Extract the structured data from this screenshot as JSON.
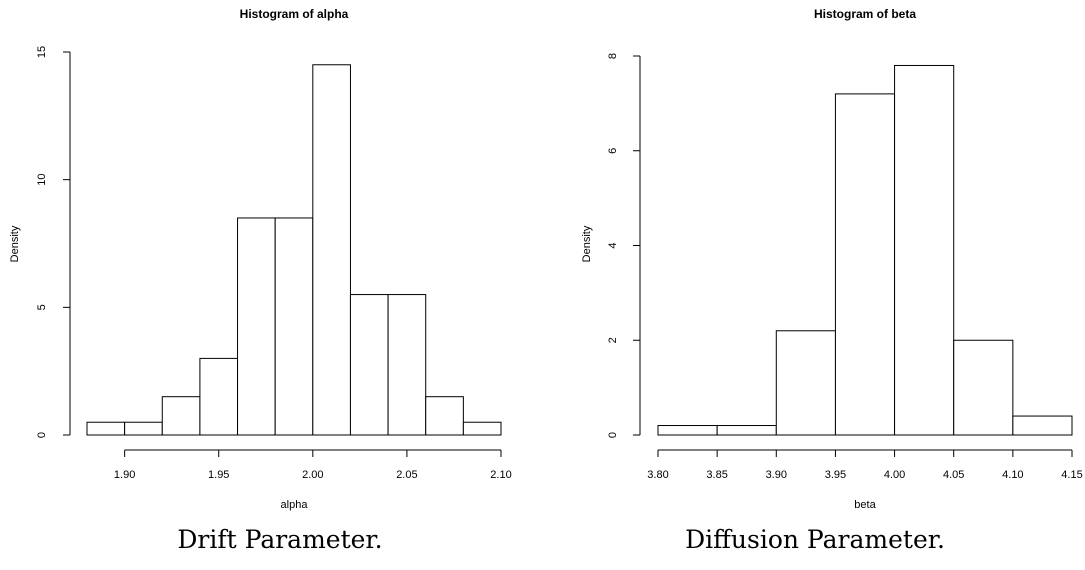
{
  "chart_data": [
    {
      "type": "bar",
      "subtype": "histogram",
      "title": "Histogram of alpha",
      "xlabel": "alpha",
      "ylabel": "Density",
      "bins": [
        {
          "start": 1.88,
          "end": 1.9,
          "density": 0.5
        },
        {
          "start": 1.9,
          "end": 1.92,
          "density": 0.5
        },
        {
          "start": 1.92,
          "end": 1.94,
          "density": 1.5
        },
        {
          "start": 1.94,
          "end": 1.96,
          "density": 3.0
        },
        {
          "start": 1.96,
          "end": 1.98,
          "density": 8.5
        },
        {
          "start": 1.98,
          "end": 2.0,
          "density": 8.5
        },
        {
          "start": 2.0,
          "end": 2.02,
          "density": 14.5
        },
        {
          "start": 2.02,
          "end": 2.04,
          "density": 5.5
        },
        {
          "start": 2.04,
          "end": 2.06,
          "density": 5.5
        },
        {
          "start": 2.06,
          "end": 2.08,
          "density": 1.5
        },
        {
          "start": 2.08,
          "end": 2.1,
          "density": 0.5
        }
      ],
      "xlim": [
        1.88,
        2.1
      ],
      "ylim": [
        0,
        15
      ],
      "xticks": [
        "1.90",
        "1.95",
        "2.00",
        "2.05",
        "2.10"
      ],
      "yticks": [
        "0",
        "5",
        "10",
        "15"
      ],
      "grid": false,
      "legend": "none",
      "caption": "Drift Parameter."
    },
    {
      "type": "bar",
      "subtype": "histogram",
      "title": "Histogram of beta",
      "xlabel": "beta",
      "ylabel": "Density",
      "bins": [
        {
          "start": 3.8,
          "end": 3.85,
          "density": 0.2
        },
        {
          "start": 3.85,
          "end": 3.9,
          "density": 0.2
        },
        {
          "start": 3.9,
          "end": 3.95,
          "density": 2.2
        },
        {
          "start": 3.95,
          "end": 4.0,
          "density": 7.2
        },
        {
          "start": 4.0,
          "end": 4.05,
          "density": 7.8
        },
        {
          "start": 4.05,
          "end": 4.1,
          "density": 2.0
        },
        {
          "start": 4.1,
          "end": 4.15,
          "density": 0.4
        }
      ],
      "xlim": [
        3.8,
        4.15
      ],
      "ylim": [
        0,
        8
      ],
      "xticks": [
        "3.80",
        "3.85",
        "3.90",
        "3.95",
        "4.00",
        "4.05",
        "4.10",
        "4.15"
      ],
      "yticks": [
        "0",
        "2",
        "4",
        "6",
        "8"
      ],
      "grid": false,
      "legend": "none",
      "caption": "Diffusion Parameter."
    }
  ],
  "colors": {
    "bar_fill": "#ffffff",
    "stroke": "#000000",
    "text": "#000000"
  }
}
